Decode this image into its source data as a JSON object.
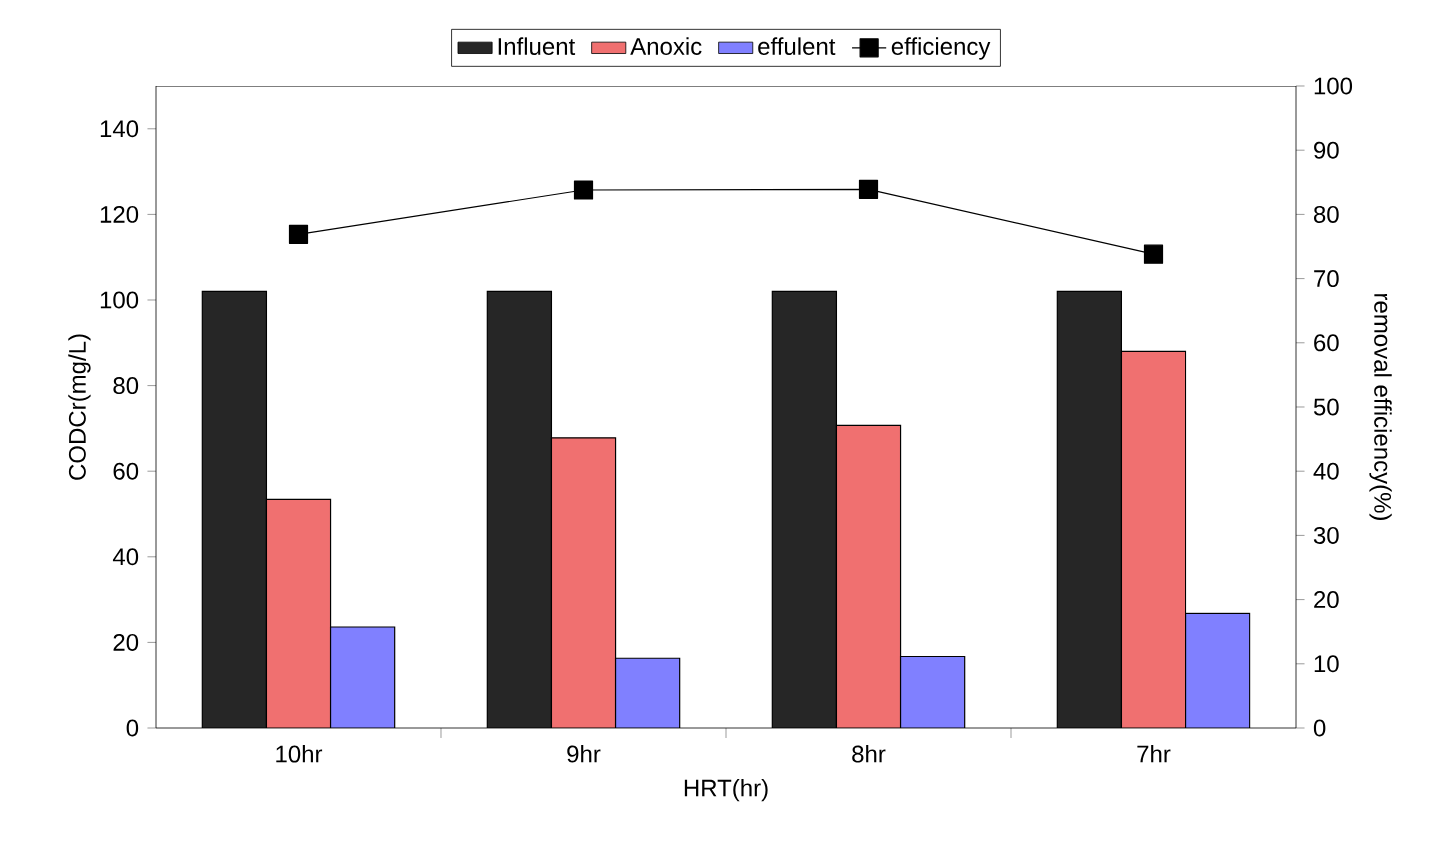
{
  "chart_data": {
    "type": "bar",
    "xlabel": "HRT(hr)",
    "ylabel": "CODCr(mg/L)",
    "y2label": "removal efficiency(%)",
    "categories": [
      "10hr",
      "9hr",
      "8hr",
      "7hr"
    ],
    "series": [
      {
        "name": "Influent",
        "color": "#262626",
        "values": [
          102,
          102,
          102,
          102
        ]
      },
      {
        "name": "Anoxic",
        "color": "#f07070",
        "values": [
          53.4,
          67.8,
          70.7,
          88.0
        ]
      },
      {
        "name": "effulent",
        "color": "#8080ff",
        "values": [
          23.6,
          16.3,
          16.7,
          26.8
        ]
      },
      {
        "name": "efficiency",
        "type": "line",
        "axis": "y2",
        "color": "#000000",
        "marker": "square",
        "line_style": "solid",
        "values": [
          76.9,
          83.8,
          83.9,
          73.8
        ]
      }
    ],
    "ylim": [
      0,
      150
    ],
    "yticks": [
      0,
      20,
      40,
      60,
      80,
      100,
      120,
      140
    ],
    "y2lim": [
      0,
      100
    ],
    "y2ticks": [
      0,
      10,
      20,
      30,
      40,
      50,
      60,
      70,
      80,
      90,
      100
    ],
    "legend": "top"
  }
}
